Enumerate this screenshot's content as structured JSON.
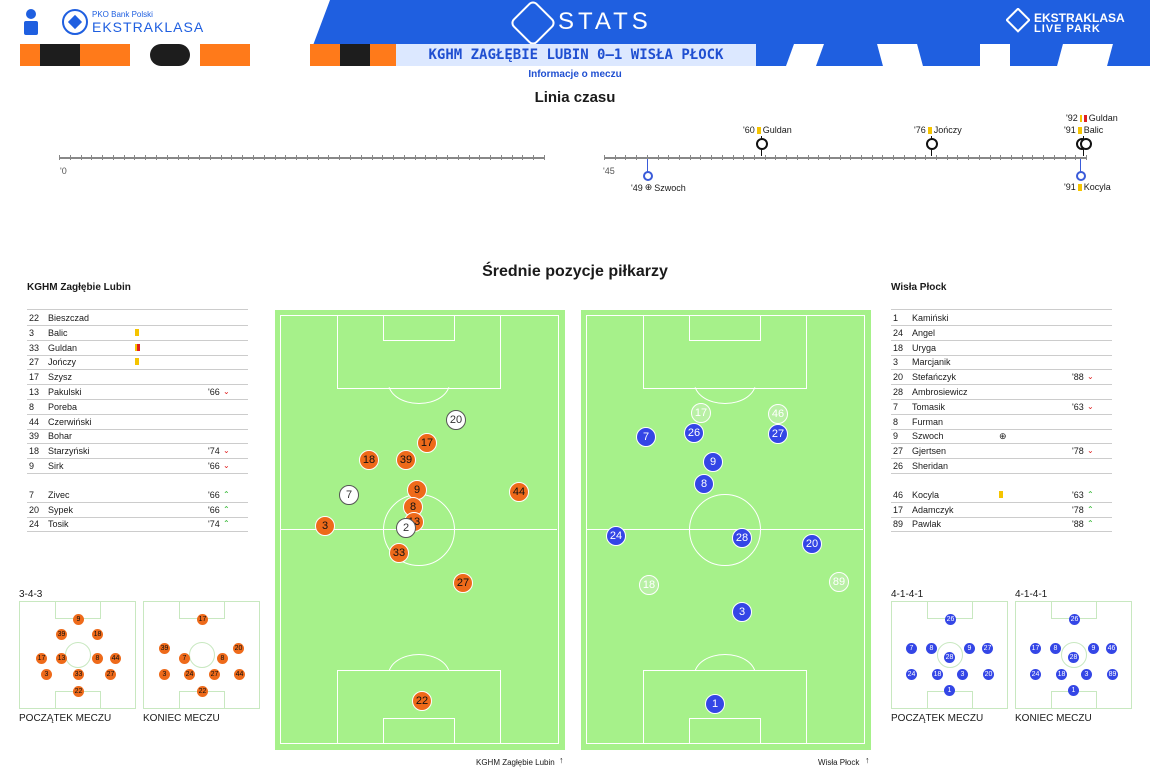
{
  "header": {
    "left_brand_small": "PKO Bank Polski",
    "left_brand": "EKSTRAKLASA",
    "center_title": "STATS",
    "right_brand_line1": "EKSTRAKLASA",
    "right_brand_line2": "LIVE PARK"
  },
  "match": {
    "title": "KGHM ZAGŁĘBIE LUBIN 0–1 WISŁA PŁOCK",
    "info_link": "Informacje o meczu"
  },
  "timeline": {
    "title": "Linia czasu",
    "first_half_start": "'0",
    "second_half_start": "'45",
    "events": [
      {
        "minute": "'60",
        "player": "Guldan",
        "card": "yellow",
        "side": "top"
      },
      {
        "minute": "'76",
        "player": "Jończy",
        "card": "yellow",
        "side": "top"
      },
      {
        "minute": "'92",
        "player": "Guldan",
        "card": "yellow-red",
        "side": "top"
      },
      {
        "minute": "'91",
        "player": "Balic",
        "card": "yellow",
        "side": "top"
      },
      {
        "minute": "'49",
        "player": "Szwoch",
        "card": "goal",
        "side": "bottom"
      },
      {
        "minute": "'91",
        "player": "Kocyla",
        "card": "yellow",
        "side": "bottom"
      }
    ]
  },
  "positions": {
    "title": "Średnie pozycje piłkarzy",
    "home_caption": "KGHM Zagłębie Lubin",
    "away_caption": "Wisła Płock"
  },
  "home": {
    "name": "KGHM Zagłębie Lubin",
    "starters": [
      {
        "num": "22",
        "name": "Bieszczad",
        "min": ""
      },
      {
        "num": "3",
        "name": "Balic",
        "min": "",
        "card": "yellow"
      },
      {
        "num": "33",
        "name": "Guldan",
        "min": "",
        "card": "yellow-red"
      },
      {
        "num": "27",
        "name": "Jończy",
        "min": "",
        "card": "yellow"
      },
      {
        "num": "17",
        "name": "Szysz",
        "min": ""
      },
      {
        "num": "13",
        "name": "Pakulski",
        "min": "'66",
        "sub": "out"
      },
      {
        "num": "8",
        "name": "Poreba",
        "min": ""
      },
      {
        "num": "44",
        "name": "Czerwiński",
        "min": ""
      },
      {
        "num": "39",
        "name": "Bohar",
        "min": ""
      },
      {
        "num": "18",
        "name": "Starzyński",
        "min": "'74",
        "sub": "out"
      },
      {
        "num": "9",
        "name": "Sirk",
        "min": "'66",
        "sub": "out"
      }
    ],
    "subs": [
      {
        "num": "7",
        "name": "Zivec",
        "min": "'66",
        "sub": "in"
      },
      {
        "num": "20",
        "name": "Sypek",
        "min": "'66",
        "sub": "in"
      },
      {
        "num": "24",
        "name": "Tosik",
        "min": "'74",
        "sub": "in"
      }
    ],
    "formation_start": "3-4-3",
    "label_start": "POCZĄTEK MECZU",
    "label_end": "KONIEC MECZU"
  },
  "away": {
    "name": "Wisła Płock",
    "starters": [
      {
        "num": "1",
        "name": "Kamiński",
        "min": ""
      },
      {
        "num": "24",
        "name": "Angel",
        "min": ""
      },
      {
        "num": "18",
        "name": "Uryga",
        "min": ""
      },
      {
        "num": "3",
        "name": "Marcjanik",
        "min": ""
      },
      {
        "num": "20",
        "name": "Stefańczyk",
        "min": "'88",
        "sub": "out"
      },
      {
        "num": "28",
        "name": "Ambrosiewicz",
        "min": ""
      },
      {
        "num": "7",
        "name": "Tomasik",
        "min": "'63",
        "sub": "out"
      },
      {
        "num": "8",
        "name": "Furman",
        "min": ""
      },
      {
        "num": "9",
        "name": "Szwoch",
        "min": "",
        "card": "goal"
      },
      {
        "num": "27",
        "name": "Gjertsen",
        "min": "'78",
        "sub": "out"
      },
      {
        "num": "26",
        "name": "Sheridan",
        "min": ""
      }
    ],
    "subs": [
      {
        "num": "46",
        "name": "Kocyla",
        "min": "'63",
        "sub": "in",
        "card": "yellow"
      },
      {
        "num": "17",
        "name": "Adamczyk",
        "min": "'78",
        "sub": "in"
      },
      {
        "num": "89",
        "name": "Pawlak",
        "min": "'88",
        "sub": "in"
      }
    ],
    "formation_start": "4-1-4-1",
    "formation_end": "4-1-4-1",
    "label_start": "POCZĄTEK MECZU",
    "label_end": "KONIEC MECZU"
  },
  "pitch_home_players": [
    "20",
    "17",
    "18",
    "39",
    "7",
    "9",
    "44",
    "8",
    "13",
    "2",
    "3",
    "33",
    "27",
    "22"
  ],
  "pitch_away_players": [
    "17",
    "46",
    "7",
    "26",
    "27",
    "9",
    "8",
    "24",
    "28",
    "20",
    "18",
    "89",
    "3",
    "1"
  ],
  "mini_home_start": [
    "9",
    "39",
    "18",
    "17",
    "13",
    "8",
    "44",
    "3",
    "33",
    "27",
    "22"
  ],
  "mini_home_end": [
    "17",
    "39",
    "20",
    "7",
    "8",
    "3",
    "24",
    "27",
    "44",
    "22"
  ],
  "mini_away_start": [
    "26",
    "7",
    "8",
    "9",
    "27",
    "28",
    "24",
    "18",
    "3",
    "20",
    "1"
  ],
  "mini_away_end": [
    "26",
    "17",
    "8",
    "9",
    "46",
    "28",
    "24",
    "18",
    "3",
    "89",
    "1"
  ],
  "colors": {
    "home": "#ee6a1a",
    "away": "#3446e6",
    "pitch": "#a6f18a",
    "header": "#1f5fe0"
  }
}
